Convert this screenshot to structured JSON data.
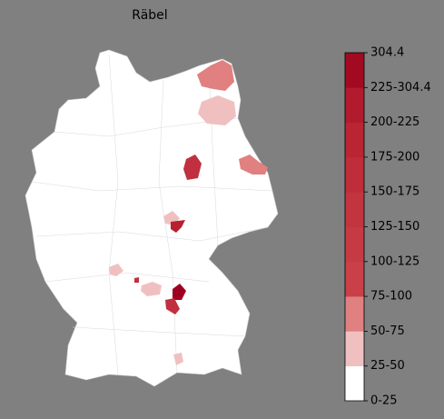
{
  "title": "Räbel",
  "colorbar": {
    "labels": [
      "0-25",
      "25-50",
      "50-75",
      "75-100",
      "100-125",
      "125-150",
      "150-175",
      "175-200",
      "200-225",
      "225-304.4",
      "304.4"
    ],
    "colors": [
      "#ffffff",
      "#f0c0c0",
      "#e08080",
      "#c94048",
      "#c53a43",
      "#c2343e",
      "#be2d39",
      "#b92533",
      "#b21a2d",
      "#a20a22"
    ]
  }
}
